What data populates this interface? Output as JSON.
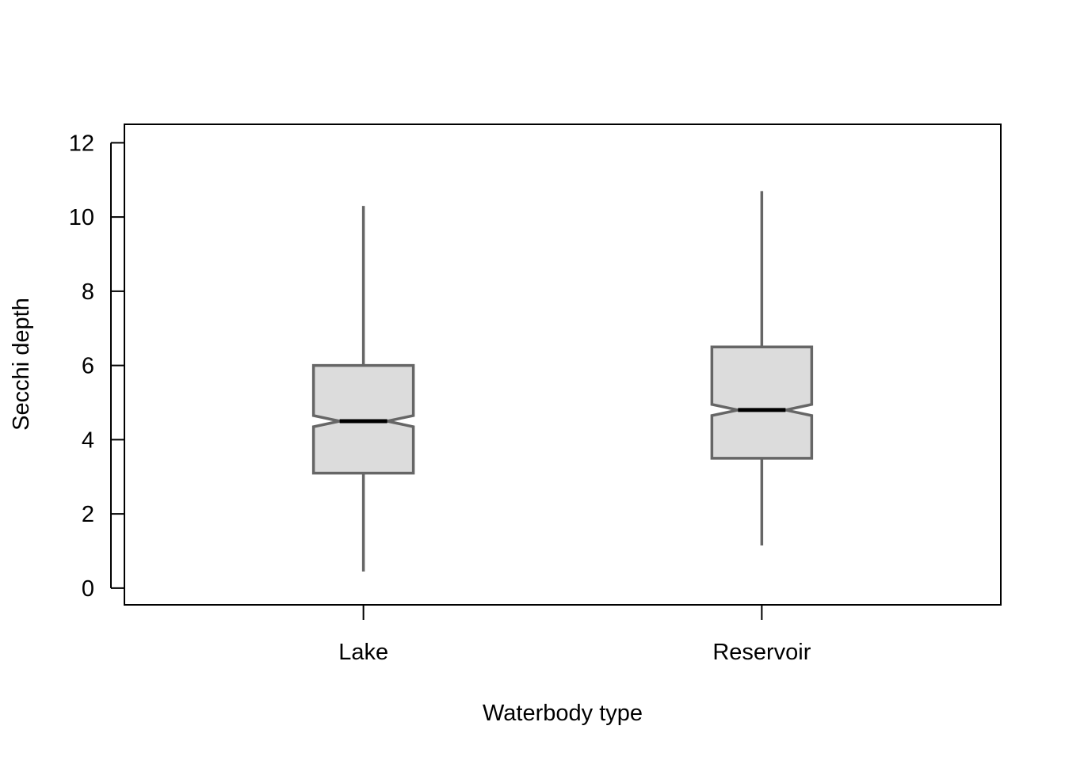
{
  "chart_data": {
    "type": "boxplot",
    "title": "",
    "xlabel": "Waterbody type",
    "ylabel": "Secchi depth",
    "ylim": [
      -0.45,
      12.5
    ],
    "yticks": [
      0,
      2,
      4,
      6,
      8,
      10,
      12
    ],
    "grid": false,
    "notched": true,
    "categories": [
      "Lake",
      "Reservoir"
    ],
    "boxes": [
      {
        "category": "Lake",
        "whisker_low": 0.45,
        "q1": 3.1,
        "median": 4.5,
        "q3": 6.0,
        "whisker_high": 10.3,
        "notch_low": 4.35,
        "notch_high": 4.65
      },
      {
        "category": "Reservoir",
        "whisker_low": 1.15,
        "q1": 3.5,
        "median": 4.8,
        "q3": 6.5,
        "whisker_high": 10.7,
        "notch_low": 4.65,
        "notch_high": 4.95
      }
    ],
    "colors": {
      "box_fill": "#dcdcdc",
      "box_stroke": "#666666",
      "median": "#000000",
      "axis": "#000000"
    }
  }
}
